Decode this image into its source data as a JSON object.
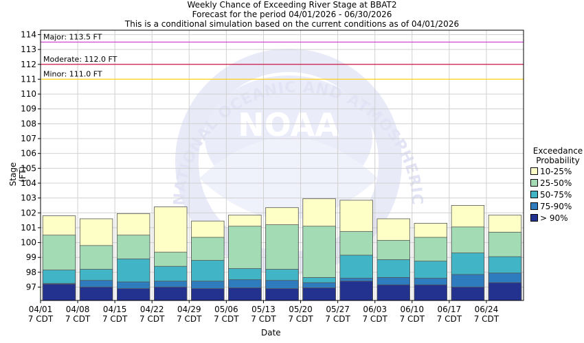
{
  "chart_data": {
    "type": "bar",
    "title": "Weekly Chance of Exceeding River Stage at BBAT2",
    "subtitle": "Forecast for the period 04/01/2026 - 06/30/2026",
    "subtitle2": "This is a conditional simulation based on the current conditions as of 04/01/2026",
    "xlabel": "Date",
    "ylabel": "Stage (FT)",
    "ylim": [
      96.1,
      114.3
    ],
    "yticks": [
      97,
      98,
      99,
      100,
      101,
      102,
      103,
      104,
      105,
      106,
      107,
      108,
      109,
      110,
      111,
      112,
      113,
      114
    ],
    "categories": [
      "04/01",
      "04/08",
      "04/15",
      "04/22",
      "04/29",
      "05/06",
      "05/13",
      "05/20",
      "05/27",
      "06/03",
      "06/10",
      "06/17",
      "06/24"
    ],
    "category_sublabel": "7 CDT",
    "bands": [
      {
        "name": "> 90%",
        "color": "#23318f",
        "values": [
          97.2,
          97.0,
          96.9,
          97.0,
          96.9,
          96.95,
          96.9,
          96.95,
          97.4,
          97.15,
          97.15,
          97.0,
          97.3
        ]
      },
      {
        "name": "75-90%",
        "color": "#2e7cbd",
        "values": [
          97.25,
          97.45,
          97.35,
          97.4,
          97.4,
          97.5,
          97.45,
          97.3,
          97.6,
          97.65,
          97.6,
          97.85,
          97.95
        ]
      },
      {
        "name": "50-75%",
        "color": "#41b5c6",
        "values": [
          98.15,
          98.2,
          98.9,
          98.4,
          98.8,
          98.25,
          98.2,
          97.65,
          99.15,
          98.85,
          98.75,
          99.3,
          99.05
        ]
      },
      {
        "name": "25-50%",
        "color": "#a3dbb5",
        "values": [
          100.5,
          99.8,
          100.5,
          99.35,
          100.35,
          101.1,
          101.2,
          101.1,
          100.75,
          100.15,
          100.35,
          101.05,
          100.7
        ]
      },
      {
        "name": "10-25%",
        "color": "#fefec7",
        "values": [
          101.8,
          101.6,
          101.95,
          102.4,
          101.45,
          101.85,
          102.35,
          102.95,
          102.85,
          101.6,
          101.3,
          102.5,
          101.85
        ]
      }
    ],
    "thresholds": [
      {
        "label": "Major: 113.5 FT",
        "value": 113.5,
        "color": "#cc33cc"
      },
      {
        "label": "Moderate: 112.0 FT",
        "value": 112.0,
        "color": "#cc0033"
      },
      {
        "label": "Minor: 111.0 FT",
        "value": 111.0,
        "color": "#ffcc00"
      }
    ],
    "legend_title": [
      "Exceedance",
      "Probability"
    ],
    "legend_order": [
      "10-25%",
      "25-50%",
      "50-75%",
      "75-90%",
      "> 90%"
    ],
    "legend_position": "right",
    "grid": true
  },
  "watermark": "NATIONAL OCEANIC AND ATMOSPHERIC ADMINISTRATION",
  "watermark_logo": "NOAA"
}
